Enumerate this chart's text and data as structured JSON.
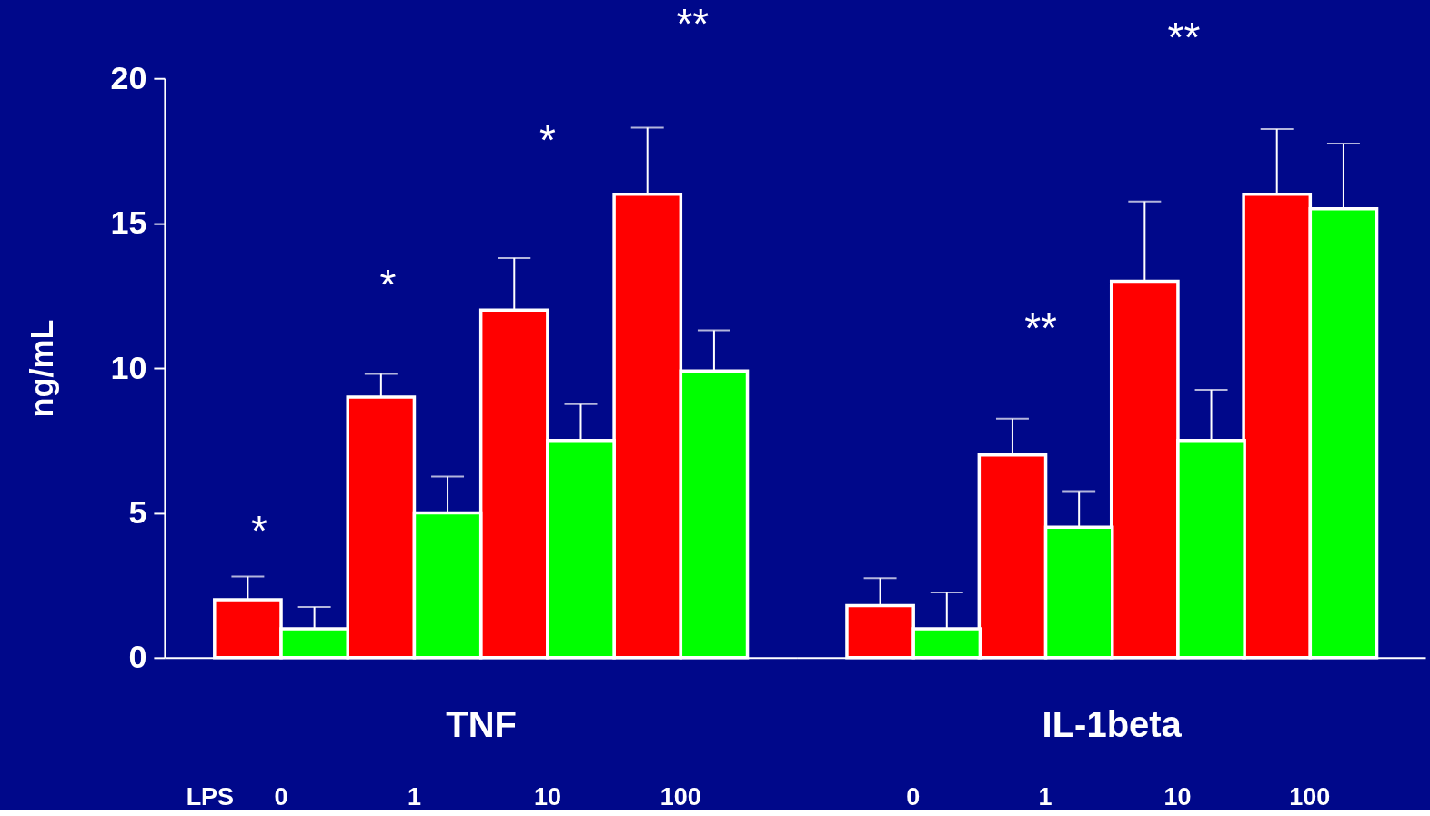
{
  "chart_data": [
    {
      "type": "bar",
      "xlabel": "TNF",
      "ylabel": "ng/mL",
      "categories": [
        "0",
        "1",
        "10",
        "100"
      ],
      "ylim": [
        0,
        20
      ],
      "yticks": [
        0,
        5,
        10,
        15,
        20
      ],
      "series": [
        {
          "color": "#ff0000",
          "values": [
            2,
            9,
            12,
            16
          ],
          "errors": [
            [
              2,
              2.8
            ],
            [
              9,
              9.8
            ],
            [
              12,
              13.8
            ],
            [
              16,
              18.3
            ]
          ]
        },
        {
          "color": "#00ff00",
          "values": [
            1,
            5,
            7.5,
            9.9
          ],
          "errors": [
            [
              1,
              1.75
            ],
            [
              5,
              6.25
            ],
            [
              7.5,
              8.75
            ],
            [
              9.9,
              11.3
            ]
          ]
        }
      ],
      "annotations": [
        "LPS",
        "*",
        "*",
        "*",
        "**"
      ]
    },
    {
      "type": "bar",
      "xlabel": "IL-1beta",
      "categories": [
        "0",
        "1",
        "10",
        "100"
      ],
      "ylim": [
        0,
        20
      ],
      "yticks": [
        0,
        5,
        10,
        15,
        20
      ],
      "tick_labels": "x",
      "series": [
        {
          "color": "#ff0000",
          "values": [
            1.8,
            7,
            13,
            16
          ],
          "errors": [
            [
              1.8,
              2.75
            ],
            [
              7,
              8.25
            ],
            [
              13,
              15.75
            ],
            [
              16,
              18.25
            ]
          ]
        },
        {
          "color": "#00ff00",
          "values": [
            1,
            4.5,
            7.5,
            15.5
          ],
          "errors": [
            [
              1,
              2.25
            ],
            [
              4.5,
              5.75
            ],
            [
              7.5,
              9.25
            ],
            [
              15.5,
              17.75
            ]
          ]
        }
      ],
      "annotations": [
        "**",
        "**"
      ]
    }
  ]
}
